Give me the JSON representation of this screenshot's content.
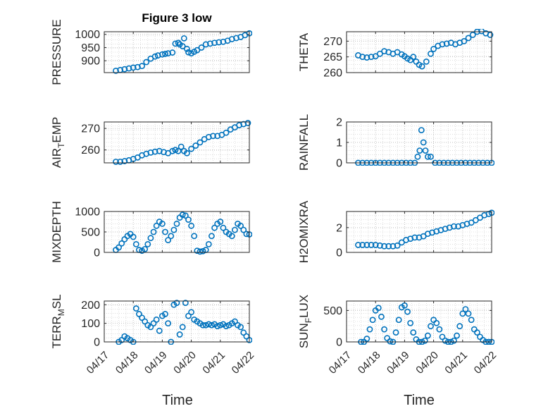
{
  "figure": {
    "title": "Figure 3 low",
    "xlabel": "Time",
    "x_tick_labels": [
      "04/17",
      "04/18",
      "04/19",
      "04/20",
      "04/21",
      "04/22"
    ],
    "marker_color": "#0072BD",
    "grid_color": "#c8c8c8"
  },
  "chart_data": [
    {
      "type": "scatter",
      "title": "Figure 3 low",
      "ylabel": "PRESSURE",
      "ylabel_sub": "",
      "ylabel_tail": "",
      "xlim": [
        0,
        5
      ],
      "ylim": [
        855,
        1010
      ],
      "yticks": [
        900,
        950,
        1000
      ],
      "xticks": [
        0,
        1,
        2,
        3,
        4,
        5
      ],
      "show_xticklabels": false,
      "grid": true,
      "series": [
        {
          "x": [
            0.4,
            0.55,
            0.7,
            0.85,
            1.0,
            1.15,
            1.3,
            1.45,
            1.6,
            1.75,
            1.85,
            2.0,
            2.1,
            2.2,
            2.35,
            2.45,
            2.55,
            2.6,
            2.7,
            2.75,
            2.85,
            2.9,
            3.0,
            3.1,
            3.2,
            3.35,
            3.5,
            3.65,
            3.8,
            3.95,
            4.1,
            4.25,
            4.4,
            4.55,
            4.7,
            4.85,
            5.0
          ],
          "y": [
            862,
            865,
            868,
            871,
            874,
            876,
            880,
            895,
            908,
            916,
            920,
            924,
            926,
            928,
            931,
            965,
            968,
            962,
            955,
            985,
            945,
            932,
            928,
            934,
            940,
            950,
            962,
            965,
            968,
            970,
            972,
            976,
            982,
            986,
            990,
            997,
            1004
          ]
        }
      ]
    },
    {
      "type": "scatter",
      "title": "",
      "ylabel": "THETA",
      "ylabel_sub": "",
      "ylabel_tail": "",
      "xlim": [
        0,
        5
      ],
      "ylim": [
        260,
        273
      ],
      "yticks": [
        260,
        265,
        270
      ],
      "xticks": [
        0,
        1,
        2,
        3,
        4,
        5
      ],
      "show_xticklabels": false,
      "grid": true,
      "series": [
        {
          "x": [
            0.4,
            0.55,
            0.7,
            0.85,
            1.0,
            1.15,
            1.3,
            1.45,
            1.6,
            1.75,
            1.9,
            2.0,
            2.1,
            2.2,
            2.3,
            2.4,
            2.5,
            2.6,
            2.75,
            2.9,
            3.0,
            3.15,
            3.3,
            3.45,
            3.6,
            3.75,
            3.9,
            4.05,
            4.2,
            4.35,
            4.5,
            4.65,
            4.8,
            4.95
          ],
          "y": [
            265.5,
            265.0,
            264.8,
            265.0,
            265.2,
            266.0,
            266.8,
            266.5,
            266.0,
            266.5,
            265.8,
            265.2,
            264.5,
            264.0,
            265.0,
            263.5,
            262.5,
            262.0,
            263.5,
            266.0,
            267.5,
            268.5,
            269.0,
            269.2,
            269.5,
            269.0,
            269.5,
            270.0,
            271.0,
            272.0,
            273.0,
            273.2,
            272.5,
            272.0
          ]
        }
      ]
    },
    {
      "type": "scatter",
      "title": "",
      "ylabel": "AIR",
      "ylabel_sub": "T",
      "ylabel_tail": "EMP",
      "xlim": [
        0,
        5
      ],
      "ylim": [
        254,
        273
      ],
      "yticks": [
        260,
        270
      ],
      "xticks": [
        0,
        1,
        2,
        3,
        4,
        5
      ],
      "show_xticklabels": false,
      "grid": true,
      "series": [
        {
          "x": [
            0.4,
            0.55,
            0.7,
            0.85,
            1.0,
            1.15,
            1.3,
            1.45,
            1.6,
            1.75,
            1.9,
            2.05,
            2.2,
            2.35,
            2.45,
            2.55,
            2.65,
            2.75,
            2.85,
            3.0,
            3.15,
            3.3,
            3.45,
            3.6,
            3.75,
            3.9,
            4.05,
            4.2,
            4.35,
            4.5,
            4.65,
            4.8,
            4.95
          ],
          "y": [
            254.5,
            254.5,
            254.8,
            255.2,
            255.8,
            256.5,
            257.5,
            258.2,
            258.8,
            259.2,
            259.5,
            259.0,
            258.5,
            259.5,
            260.0,
            259.5,
            261.5,
            259.5,
            258.5,
            260.5,
            262.0,
            263.5,
            265.0,
            266.0,
            266.5,
            266.5,
            267.0,
            268.0,
            269.5,
            270.5,
            271.5,
            272.0,
            272.5
          ]
        }
      ]
    },
    {
      "type": "scatter",
      "title": "",
      "ylabel": "RAINFALL",
      "ylabel_sub": "",
      "ylabel_tail": "",
      "xlim": [
        0,
        5
      ],
      "ylim": [
        0,
        2
      ],
      "yticks": [
        0,
        1,
        2
      ],
      "xticks": [
        0,
        1,
        2,
        3,
        4,
        5
      ],
      "show_xticklabels": false,
      "grid": true,
      "series": [
        {
          "x": [
            0.4,
            0.55,
            0.7,
            0.85,
            1.0,
            1.15,
            1.3,
            1.45,
            1.6,
            1.75,
            1.9,
            2.05,
            2.2,
            2.35,
            2.45,
            2.52,
            2.58,
            2.65,
            2.72,
            2.8,
            2.9,
            3.05,
            3.2,
            3.35,
            3.5,
            3.65,
            3.8,
            3.95,
            4.1,
            4.25,
            4.4,
            4.55,
            4.7,
            4.85,
            5.0
          ],
          "y": [
            0,
            0,
            0,
            0,
            0,
            0,
            0,
            0,
            0,
            0,
            0,
            0,
            0,
            0,
            0.3,
            0.6,
            1.6,
            1.0,
            0.6,
            0.3,
            0.3,
            0,
            0,
            0,
            0,
            0,
            0,
            0,
            0,
            0,
            0,
            0,
            0,
            0,
            0
          ]
        }
      ]
    },
    {
      "type": "scatter",
      "title": "",
      "ylabel": "MIXDEPTH",
      "ylabel_sub": "",
      "ylabel_tail": "",
      "xlim": [
        0,
        5
      ],
      "ylim": [
        0,
        1000
      ],
      "yticks": [
        0,
        500,
        1000
      ],
      "xticks": [
        0,
        1,
        2,
        3,
        4,
        5
      ],
      "show_xticklabels": false,
      "grid": true,
      "series": [
        {
          "x": [
            0.4,
            0.5,
            0.6,
            0.7,
            0.8,
            0.9,
            1.0,
            1.1,
            1.2,
            1.3,
            1.4,
            1.5,
            1.6,
            1.7,
            1.8,
            1.9,
            2.0,
            2.1,
            2.2,
            2.3,
            2.4,
            2.5,
            2.6,
            2.7,
            2.8,
            2.9,
            3.0,
            3.1,
            3.2,
            3.3,
            3.4,
            3.5,
            3.6,
            3.7,
            3.8,
            3.9,
            4.0,
            4.1,
            4.2,
            4.3,
            4.4,
            4.5,
            4.6,
            4.7,
            4.8,
            4.9,
            5.0
          ],
          "y": [
            60,
            120,
            220,
            320,
            400,
            450,
            380,
            200,
            60,
            40,
            80,
            200,
            350,
            500,
            650,
            750,
            700,
            500,
            300,
            400,
            550,
            700,
            850,
            920,
            900,
            800,
            650,
            400,
            40,
            20,
            30,
            60,
            200,
            400,
            600,
            700,
            750,
            600,
            500,
            450,
            400,
            550,
            700,
            650,
            550,
            450,
            440
          ]
        }
      ]
    },
    {
      "type": "scatter",
      "title": "",
      "ylabel": "H2OMIXRA",
      "ylabel_sub": "",
      "ylabel_tail": "",
      "xlim": [
        0,
        5
      ],
      "ylim": [
        0,
        3.3
      ],
      "yticks": [
        0,
        2
      ],
      "xticks": [
        0,
        1,
        2,
        3,
        4,
        5
      ],
      "show_xticklabels": false,
      "grid": true,
      "series": [
        {
          "x": [
            0.4,
            0.55,
            0.7,
            0.85,
            1.0,
            1.15,
            1.3,
            1.45,
            1.6,
            1.75,
            1.9,
            2.05,
            2.2,
            2.35,
            2.5,
            2.65,
            2.8,
            2.95,
            3.1,
            3.25,
            3.4,
            3.55,
            3.7,
            3.85,
            4.0,
            4.15,
            4.3,
            4.45,
            4.6,
            4.75,
            4.9,
            5.0
          ],
          "y": [
            0.6,
            0.6,
            0.6,
            0.6,
            0.6,
            0.55,
            0.5,
            0.5,
            0.5,
            0.55,
            0.8,
            1.0,
            1.1,
            1.2,
            1.2,
            1.3,
            1.5,
            1.6,
            1.7,
            1.8,
            1.9,
            2.0,
            2.1,
            2.1,
            2.2,
            2.3,
            2.4,
            2.6,
            2.8,
            3.0,
            3.1,
            3.2
          ]
        }
      ]
    },
    {
      "type": "scatter",
      "title": "",
      "ylabel": "TERR",
      "ylabel_sub": "M",
      "ylabel_tail": "SL",
      "xlim": [
        0,
        5
      ],
      "ylim": [
        0,
        220
      ],
      "yticks": [
        0,
        100,
        200
      ],
      "xticks": [
        0,
        1,
        2,
        3,
        4,
        5
      ],
      "show_xticklabels": true,
      "grid": true,
      "series": [
        {
          "x": [
            0.5,
            0.6,
            0.7,
            0.8,
            0.9,
            1.0,
            1.1,
            1.2,
            1.3,
            1.4,
            1.5,
            1.6,
            1.7,
            1.8,
            1.9,
            2.0,
            2.1,
            2.2,
            2.3,
            2.4,
            2.5,
            2.6,
            2.7,
            2.8,
            2.9,
            3.0,
            3.1,
            3.2,
            3.3,
            3.4,
            3.5,
            3.6,
            3.7,
            3.8,
            3.9,
            4.0,
            4.1,
            4.2,
            4.3,
            4.4,
            4.5,
            4.6,
            4.7,
            4.8,
            4.9,
            5.0
          ],
          "y": [
            0,
            10,
            30,
            20,
            10,
            0,
            180,
            150,
            130,
            110,
            90,
            80,
            100,
            120,
            60,
            140,
            150,
            100,
            0,
            200,
            210,
            40,
            80,
            210,
            140,
            160,
            120,
            110,
            100,
            90,
            90,
            95,
            90,
            95,
            85,
            90,
            95,
            85,
            90,
            100,
            110,
            90,
            80,
            50,
            30,
            10
          ]
        }
      ]
    },
    {
      "type": "scatter",
      "title": "",
      "ylabel": "SUN",
      "ylabel_sub": "F",
      "ylabel_tail": "LUX",
      "xlim": [
        0,
        5
      ],
      "ylim": [
        0,
        650
      ],
      "yticks": [
        0,
        500
      ],
      "xticks": [
        0,
        1,
        2,
        3,
        4,
        5
      ],
      "show_xticklabels": true,
      "grid": true,
      "series": [
        {
          "x": [
            0.5,
            0.6,
            0.7,
            0.8,
            0.9,
            1.0,
            1.1,
            1.2,
            1.3,
            1.4,
            1.5,
            1.6,
            1.7,
            1.8,
            1.9,
            2.0,
            2.1,
            2.2,
            2.3,
            2.4,
            2.5,
            2.6,
            2.7,
            2.8,
            2.9,
            3.0,
            3.1,
            3.2,
            3.3,
            3.4,
            3.5,
            3.6,
            3.7,
            3.8,
            3.9,
            4.0,
            4.1,
            4.2,
            4.3,
            4.4,
            4.5,
            4.6,
            4.7,
            4.8,
            4.9,
            5.0
          ],
          "y": [
            0,
            0,
            50,
            200,
            350,
            500,
            540,
            400,
            200,
            60,
            10,
            0,
            150,
            350,
            550,
            580,
            480,
            300,
            150,
            40,
            0,
            0,
            20,
            100,
            250,
            350,
            300,
            200,
            80,
            20,
            0,
            0,
            20,
            100,
            250,
            450,
            520,
            450,
            350,
            200,
            150,
            80,
            30,
            0,
            0,
            0
          ]
        }
      ]
    }
  ]
}
